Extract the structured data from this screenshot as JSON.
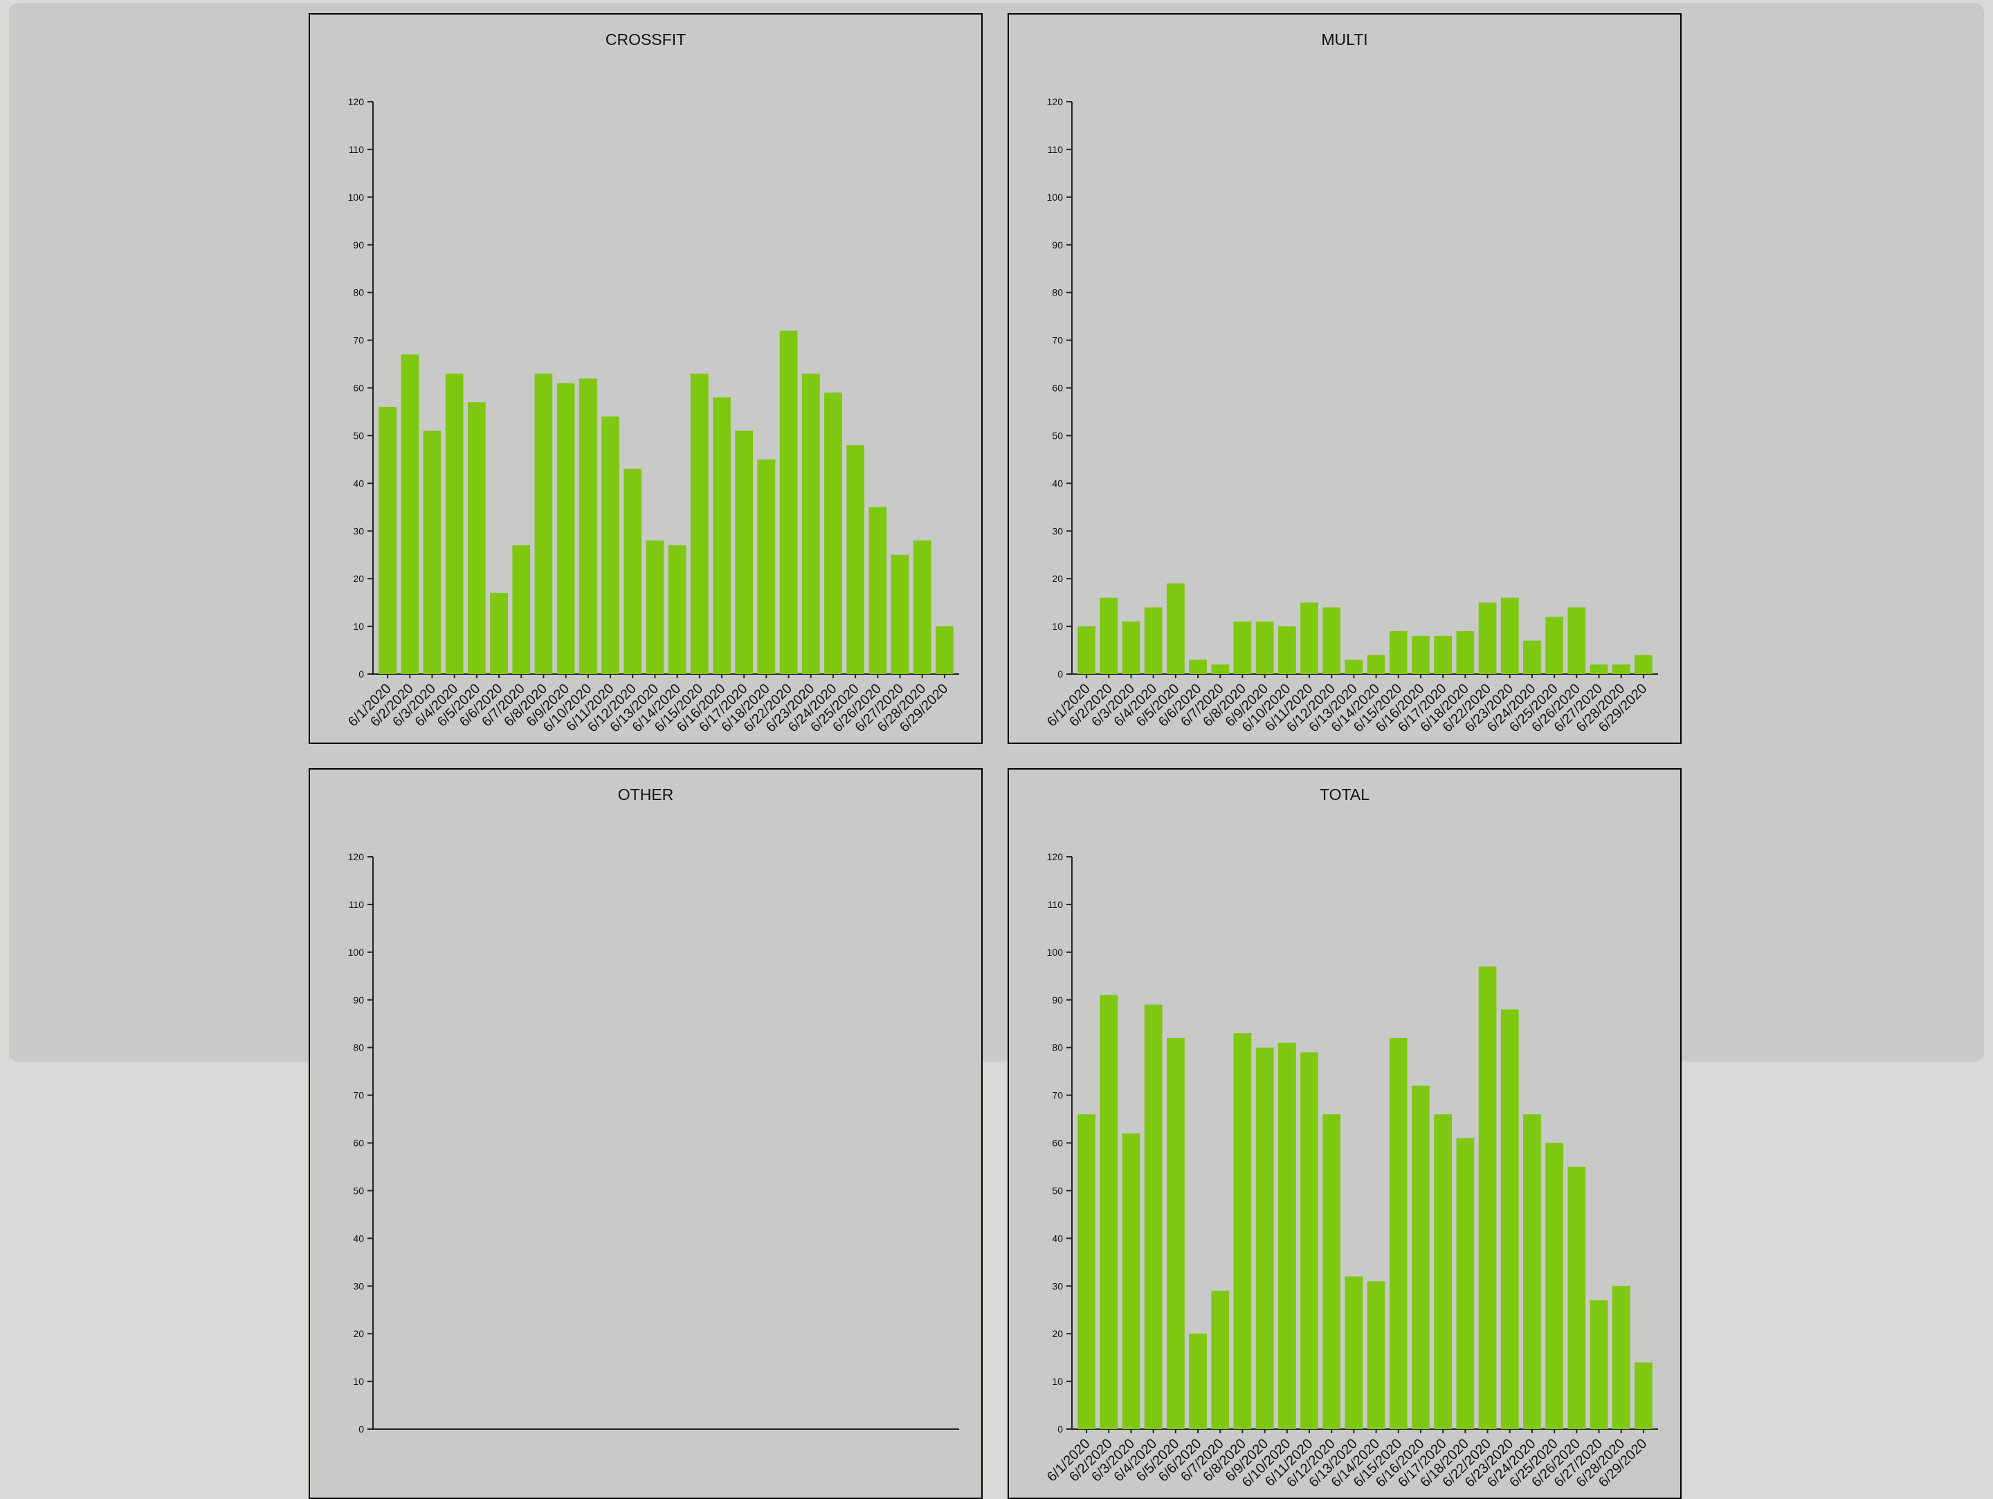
{
  "colors": {
    "bar": "#7ec812",
    "background": "#c9c9c7",
    "border": "#000000"
  },
  "chart_data": [
    {
      "type": "bar",
      "title": "CROSSFIT",
      "xlabel": "",
      "ylabel": "",
      "ylim": [
        0,
        120
      ],
      "yticks": [
        0,
        10,
        20,
        30,
        40,
        50,
        60,
        70,
        80,
        90,
        100,
        110,
        120
      ],
      "grid": false,
      "categories": [
        "6/1/2020",
        "6/2/2020",
        "6/3/2020",
        "6/4/2020",
        "6/5/2020",
        "6/6/2020",
        "6/7/2020",
        "6/8/2020",
        "6/9/2020",
        "6/10/2020",
        "6/11/2020",
        "6/12/2020",
        "6/13/2020",
        "6/14/2020",
        "6/15/2020",
        "6/16/2020",
        "6/17/2020",
        "6/18/2020",
        "6/22/2020",
        "6/23/2020",
        "6/24/2020",
        "6/25/2020",
        "6/26/2020",
        "6/27/2020",
        "6/28/2020",
        "6/29/2020"
      ],
      "values": [
        56,
        67,
        51,
        63,
        57,
        17,
        27,
        63,
        61,
        62,
        54,
        43,
        28,
        27,
        63,
        58,
        51,
        45,
        72,
        63,
        59,
        48,
        35,
        25,
        28,
        10
      ]
    },
    {
      "type": "bar",
      "title": "MULTI",
      "xlabel": "",
      "ylabel": "",
      "ylim": [
        0,
        120
      ],
      "yticks": [
        0,
        10,
        20,
        30,
        40,
        50,
        60,
        70,
        80,
        90,
        100,
        110,
        120
      ],
      "grid": false,
      "categories": [
        "6/1/2020",
        "6/2/2020",
        "6/3/2020",
        "6/4/2020",
        "6/5/2020",
        "6/6/2020",
        "6/7/2020",
        "6/8/2020",
        "6/9/2020",
        "6/10/2020",
        "6/11/2020",
        "6/12/2020",
        "6/13/2020",
        "6/14/2020",
        "6/15/2020",
        "6/16/2020",
        "6/17/2020",
        "6/18/2020",
        "6/22/2020",
        "6/23/2020",
        "6/24/2020",
        "6/25/2020",
        "6/26/2020",
        "6/27/2020",
        "6/28/2020",
        "6/29/2020"
      ],
      "values": [
        10,
        16,
        11,
        14,
        19,
        3,
        2,
        11,
        11,
        10,
        15,
        14,
        3,
        4,
        9,
        8,
        8,
        9,
        15,
        16,
        7,
        12,
        14,
        2,
        2,
        4
      ]
    },
    {
      "type": "bar",
      "title": "OTHER",
      "xlabel": "",
      "ylabel": "",
      "ylim": [
        0,
        120
      ],
      "yticks": [
        0,
        10,
        20,
        30,
        40,
        50,
        60,
        70,
        80,
        90,
        100,
        110,
        120
      ],
      "grid": false,
      "categories": [],
      "values": []
    },
    {
      "type": "bar",
      "title": "TOTAL",
      "xlabel": "",
      "ylabel": "",
      "ylim": [
        0,
        120
      ],
      "yticks": [
        0,
        10,
        20,
        30,
        40,
        50,
        60,
        70,
        80,
        90,
        100,
        110,
        120
      ],
      "grid": false,
      "categories": [
        "6/1/2020",
        "6/2/2020",
        "6/3/2020",
        "6/4/2020",
        "6/5/2020",
        "6/6/2020",
        "6/7/2020",
        "6/8/2020",
        "6/9/2020",
        "6/10/2020",
        "6/11/2020",
        "6/12/2020",
        "6/13/2020",
        "6/14/2020",
        "6/15/2020",
        "6/16/2020",
        "6/17/2020",
        "6/18/2020",
        "6/22/2020",
        "6/23/2020",
        "6/24/2020",
        "6/25/2020",
        "6/26/2020",
        "6/27/2020",
        "6/28/2020",
        "6/29/2020"
      ],
      "values": [
        66,
        91,
        62,
        89,
        82,
        20,
        29,
        83,
        80,
        81,
        79,
        66,
        32,
        31,
        82,
        72,
        66,
        61,
        97,
        88,
        66,
        60,
        55,
        27,
        30,
        14
      ]
    }
  ]
}
